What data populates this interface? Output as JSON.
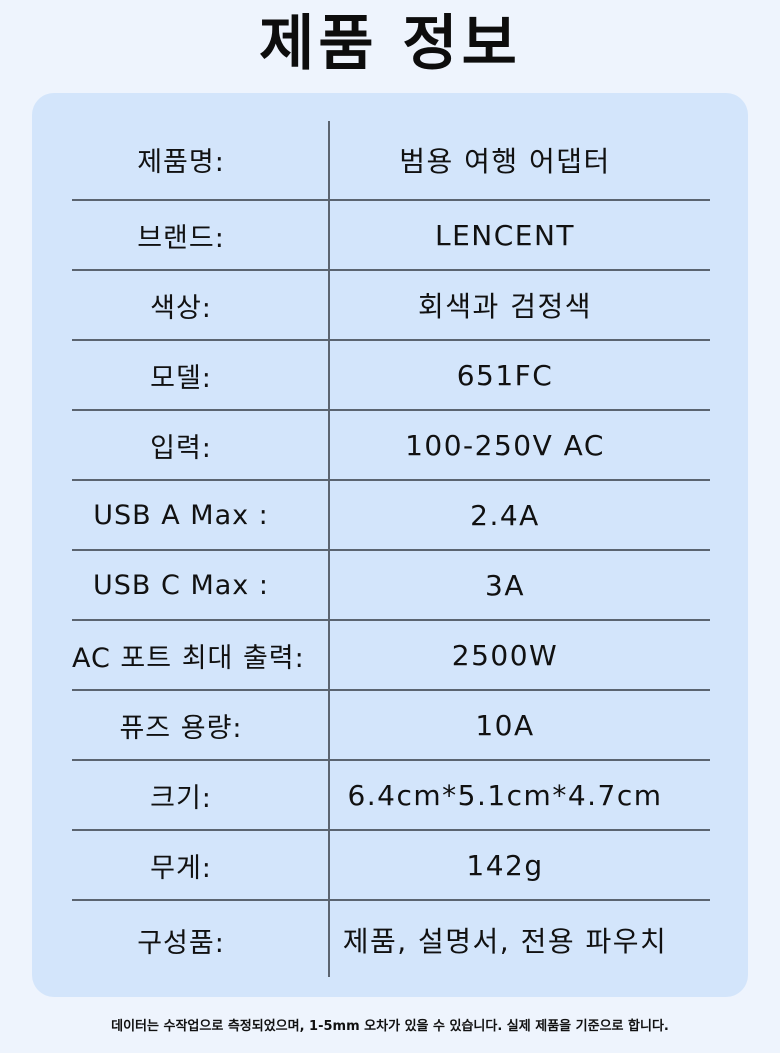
{
  "title": "제품 정보",
  "specs": [
    {
      "label": "제품명:",
      "value": "범용 여행 어댑터"
    },
    {
      "label": "브랜드:",
      "value": "LENCENT"
    },
    {
      "label": "색상:",
      "value": "회색과 검정색"
    },
    {
      "label": "모델:",
      "value": "651FC"
    },
    {
      "label": "입력:",
      "value": "100-250V AC"
    },
    {
      "label": "USB A Max :",
      "value": "2.4A"
    },
    {
      "label": "USB C Max :",
      "value": "3A"
    },
    {
      "label": "AC 포트 최대 출력:",
      "value": "2500W"
    },
    {
      "label": "퓨즈 용량:",
      "value": "10A"
    },
    {
      "label": "크기:",
      "value": "6.4cm*5.1cm*4.7cm"
    },
    {
      "label": "무게:",
      "value": "142g"
    },
    {
      "label": "구성품:",
      "value": "제품, 설명서, 전용 파우치"
    }
  ],
  "footnote": "데이터는 수작업으로 측정되었으며, 1-5mm 오차가 있을 수 있습니다. 실제 제품을 기준으로 합니다."
}
